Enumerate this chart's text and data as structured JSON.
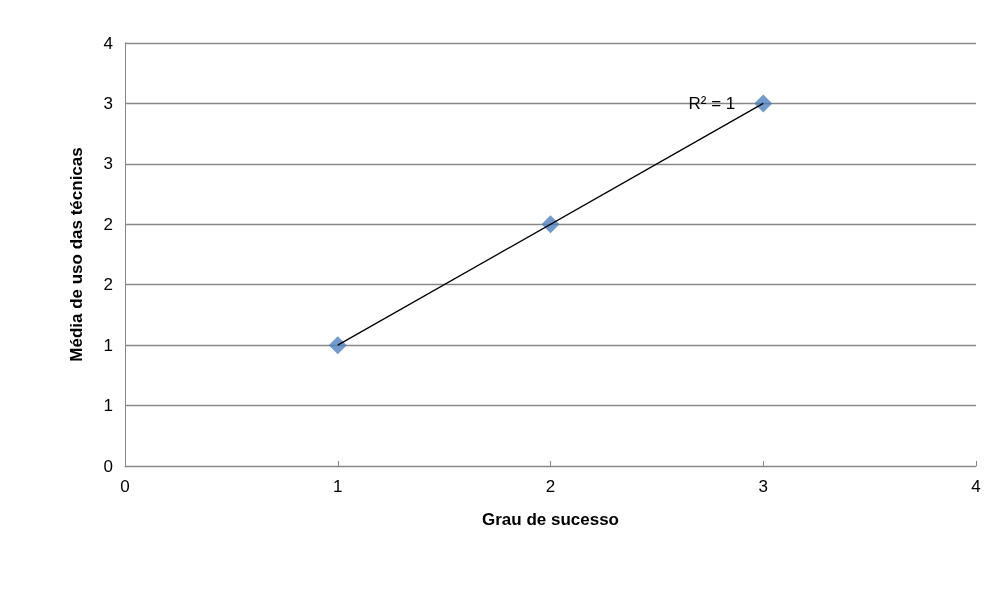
{
  "chart_data": {
    "type": "scatter",
    "xlabel": "Grau de sucesso",
    "ylabel": "Média de uso das técnicas",
    "series": [
      {
        "type": "scatter",
        "color": "#4f81bd",
        "marker": "diamond",
        "x": [
          1,
          2,
          3
        ],
        "values": [
          1,
          2,
          3
        ]
      },
      {
        "type": "line",
        "color": "#000000",
        "marker": "none",
        "line_style": "solid",
        "x": [
          1,
          3
        ],
        "values": [
          1,
          3
        ]
      }
    ],
    "xlim": [
      0,
      4
    ],
    "xticks": [
      0,
      1,
      2,
      3,
      4
    ],
    "ylim": [
      0,
      3.5
    ],
    "yticks": [
      0,
      {
        "value": 0.5,
        "label": "1"
      },
      1,
      {
        "value": 1.5,
        "label": "2"
      },
      2,
      {
        "value": 2.5,
        "label": "3"
      },
      3,
      {
        "value": 3.5,
        "label": "4"
      }
    ],
    "grid": "y",
    "annotations": [
      {
        "text": "R² = 1",
        "x": 3,
        "y": 3
      }
    ]
  }
}
